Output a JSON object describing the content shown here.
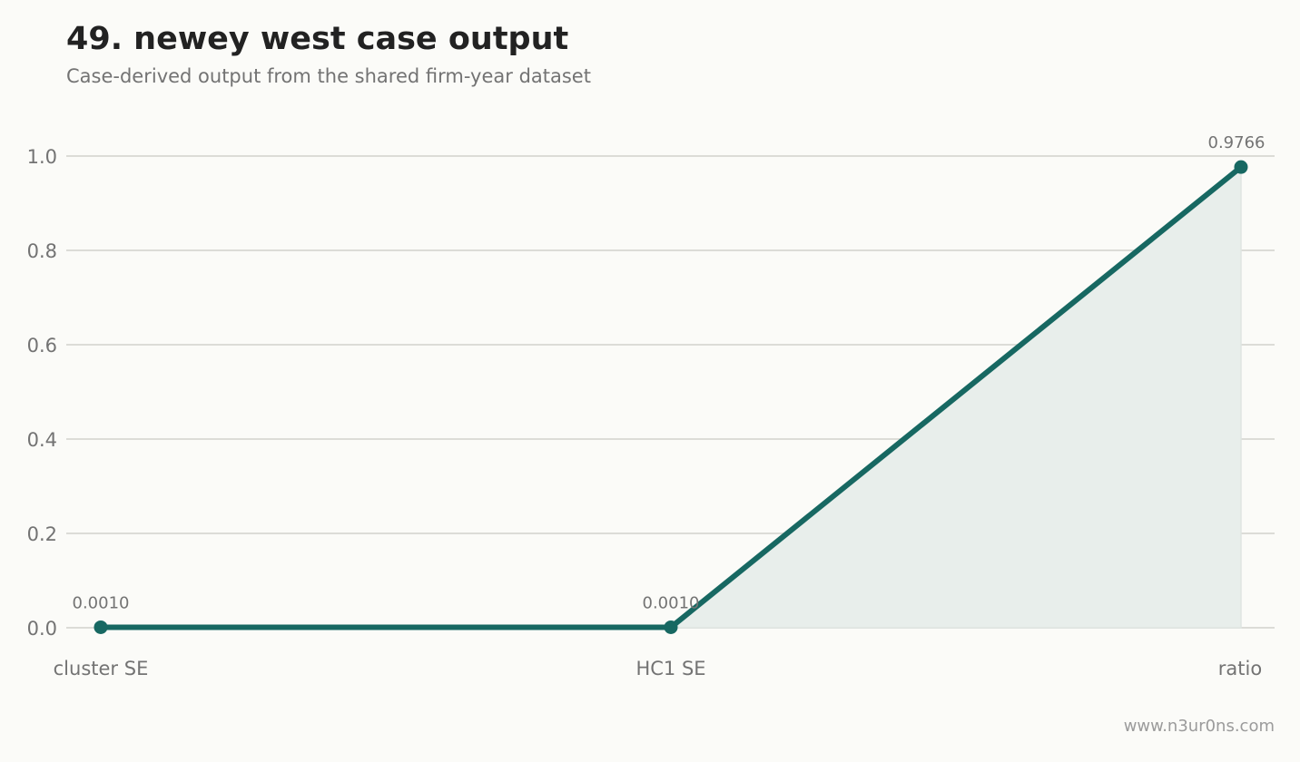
{
  "header": {
    "title": "49. newey west case output",
    "subtitle": "Case-derived output from the shared firm-year dataset"
  },
  "footer": {
    "watermark": "www.n3ur0ns.com"
  },
  "colors": {
    "line": "#176862",
    "area": "#e8eeeb",
    "grid": "#dcdcd7",
    "text": "#737373"
  },
  "chart_data": {
    "type": "line",
    "categories": [
      "cluster SE",
      "HC1 SE",
      "ratio"
    ],
    "series": [
      {
        "values": [
          0.001,
          0.001,
          0.9766
        ],
        "labels": [
          "0.0010",
          "0.0010",
          "0.9766"
        ]
      }
    ],
    "yticks": [
      0.0,
      0.2,
      0.4,
      0.6,
      0.8,
      1.0
    ],
    "ytick_labels": [
      "0.0",
      "0.2",
      "0.4",
      "0.6",
      "0.8",
      "1.0"
    ],
    "ylim": [
      0,
      1.0
    ],
    "grid": true,
    "legend": "none",
    "area_fill_from_index": 1
  }
}
